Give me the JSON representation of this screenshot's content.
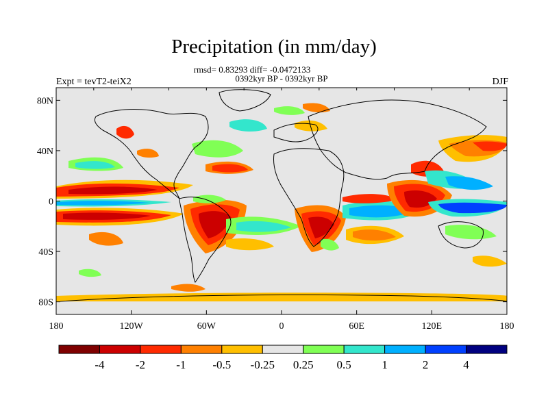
{
  "title": "Precipitation (in mm/day)",
  "stats_line": "rmsd= 0.83293 diff= -0.0472133",
  "period_line": "0392kyr BP - 0392kyr BP",
  "experiment": "Expt = tevT2-teiX2",
  "season": "DJF",
  "map": {
    "projection": "cylindrical equidistant",
    "lon_range": [
      -180,
      180
    ],
    "lat_range": [
      -90,
      90
    ],
    "x_ticks": [
      "180",
      "120W",
      "60W",
      "0",
      "60E",
      "120E",
      "180"
    ],
    "y_ticks": [
      "80N",
      "40N",
      "0",
      "40S",
      "80S"
    ],
    "background_color": "#e6e6e6",
    "coastline_color": "#000000"
  },
  "colorbar": {
    "colors": [
      "#7f0000",
      "#cc0000",
      "#ff2a00",
      "#ff8000",
      "#ffbf00",
      "#e6e6e6",
      "#80ff55",
      "#33e6cc",
      "#00b0ff",
      "#0040ff",
      "#000080"
    ],
    "labels": [
      "-4",
      "-2",
      "-1",
      "-0.5",
      "-0.25",
      "0.25",
      "0.5",
      "1",
      "2",
      "4"
    ]
  }
}
